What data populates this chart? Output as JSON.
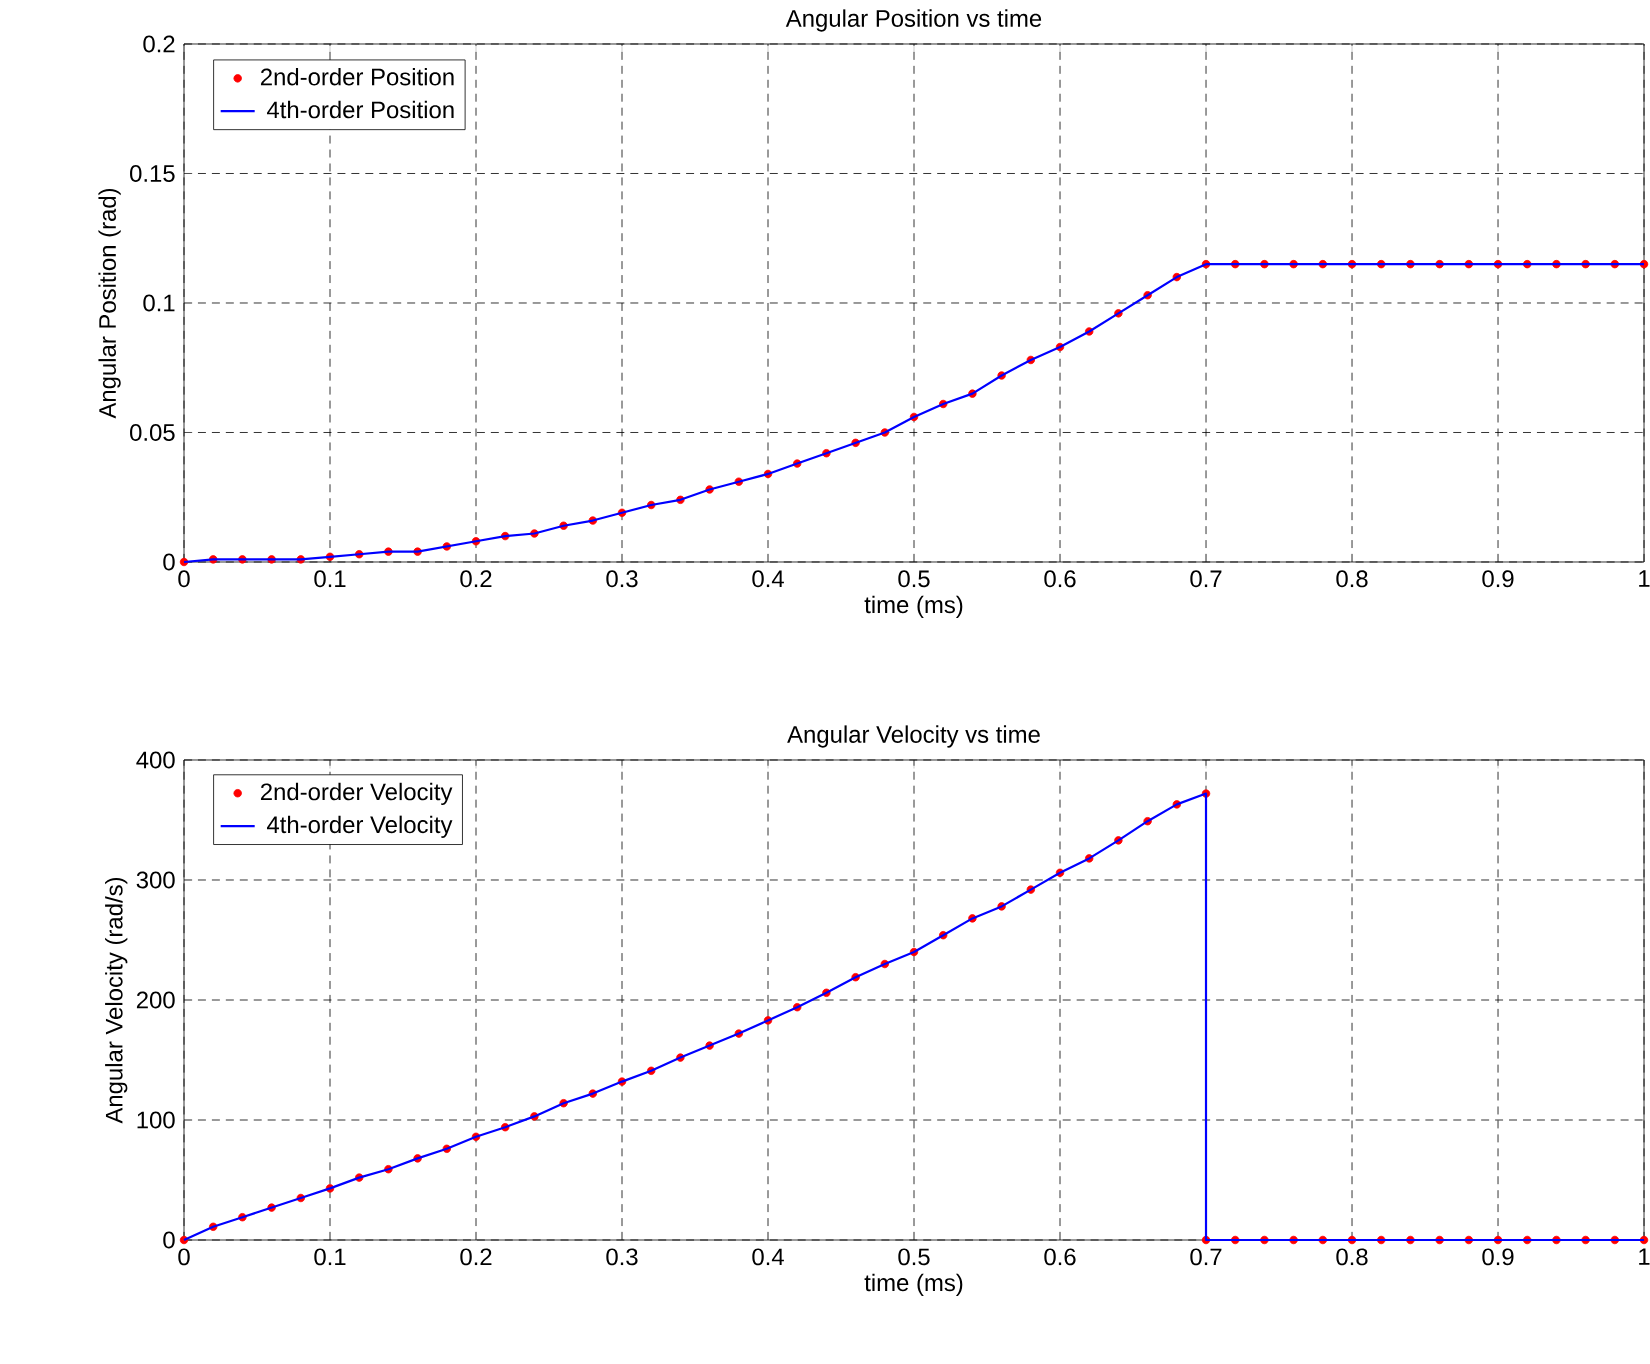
{
  "chart_data": [
    {
      "type": "line",
      "title": "Angular Position vs time",
      "xlabel": "time (ms)",
      "ylabel": "Angular Position (rad)",
      "xlim": [
        0,
        1
      ],
      "xticks": [
        0,
        0.1,
        0.2,
        0.3,
        0.4,
        0.5,
        0.6,
        0.7,
        0.8,
        0.9,
        1
      ],
      "ylim": [
        0,
        0.2
      ],
      "yticks": [
        0,
        0.05,
        0.1,
        0.15,
        0.2
      ],
      "grid": true,
      "legend": "top left",
      "series": [
        {
          "name": "2nd-order Position",
          "type": "scatter",
          "marker": "circle",
          "color": "#ff0000",
          "x": [
            0,
            0.02,
            0.04,
            0.06,
            0.08,
            0.1,
            0.12,
            0.14,
            0.16,
            0.18,
            0.2,
            0.22,
            0.24,
            0.26,
            0.28,
            0.3,
            0.32,
            0.34,
            0.36,
            0.38,
            0.4,
            0.42,
            0.44,
            0.46,
            0.48,
            0.5,
            0.52,
            0.54,
            0.56,
            0.58,
            0.6,
            0.62,
            0.64,
            0.66,
            0.68,
            0.7,
            0.72,
            0.74,
            0.76,
            0.78,
            0.8,
            0.82,
            0.84,
            0.86,
            0.88,
            0.9,
            0.92,
            0.94,
            0.96,
            0.98,
            1
          ],
          "values": [
            0,
            0.001,
            0.001,
            0.001,
            0.001,
            0.002,
            0.003,
            0.004,
            0.004,
            0.006,
            0.008,
            0.01,
            0.011,
            0.014,
            0.016,
            0.019,
            0.022,
            0.024,
            0.028,
            0.031,
            0.034,
            0.038,
            0.042,
            0.046,
            0.05,
            0.056,
            0.061,
            0.065,
            0.072,
            0.078,
            0.083,
            0.089,
            0.096,
            0.103,
            0.11,
            0.115,
            0.115,
            0.115,
            0.115,
            0.115,
            0.115,
            0.115,
            0.115,
            0.115,
            0.115,
            0.115,
            0.115,
            0.115,
            0.115,
            0.115,
            0.115
          ]
        },
        {
          "name": "4th-order Position",
          "type": "line",
          "marker": "none",
          "color": "#0000ff",
          "x": [
            0,
            0.02,
            0.04,
            0.06,
            0.08,
            0.1,
            0.12,
            0.14,
            0.16,
            0.18,
            0.2,
            0.22,
            0.24,
            0.26,
            0.28,
            0.3,
            0.32,
            0.34,
            0.36,
            0.38,
            0.4,
            0.42,
            0.44,
            0.46,
            0.48,
            0.5,
            0.52,
            0.54,
            0.56,
            0.58,
            0.6,
            0.62,
            0.64,
            0.66,
            0.68,
            0.7,
            0.72,
            0.74,
            0.76,
            0.78,
            0.8,
            0.82,
            0.84,
            0.86,
            0.88,
            0.9,
            0.92,
            0.94,
            0.96,
            0.98,
            1
          ],
          "values": [
            0,
            0.001,
            0.001,
            0.001,
            0.001,
            0.002,
            0.003,
            0.004,
            0.004,
            0.006,
            0.008,
            0.01,
            0.011,
            0.014,
            0.016,
            0.019,
            0.022,
            0.024,
            0.028,
            0.031,
            0.034,
            0.038,
            0.042,
            0.046,
            0.05,
            0.056,
            0.061,
            0.065,
            0.072,
            0.078,
            0.083,
            0.089,
            0.096,
            0.103,
            0.11,
            0.115,
            0.115,
            0.115,
            0.115,
            0.115,
            0.115,
            0.115,
            0.115,
            0.115,
            0.115,
            0.115,
            0.115,
            0.115,
            0.115,
            0.115,
            0.115
          ]
        }
      ]
    },
    {
      "type": "line",
      "title": "Angular Velocity vs time",
      "xlabel": "time (ms)",
      "ylabel": "Angular Velocity (rad/s)",
      "xlim": [
        0,
        1
      ],
      "xticks": [
        0,
        0.1,
        0.2,
        0.3,
        0.4,
        0.5,
        0.6,
        0.7,
        0.8,
        0.9,
        1
      ],
      "ylim": [
        0,
        400
      ],
      "yticks": [
        0,
        100,
        200,
        300,
        400
      ],
      "grid": true,
      "legend": "top left",
      "series": [
        {
          "name": "2nd-order Velocity",
          "type": "scatter",
          "marker": "circle",
          "color": "#ff0000",
          "x": [
            0,
            0.02,
            0.04,
            0.06,
            0.08,
            0.1,
            0.12,
            0.14,
            0.16,
            0.18,
            0.2,
            0.22,
            0.24,
            0.26,
            0.28,
            0.3,
            0.32,
            0.34,
            0.36,
            0.38,
            0.4,
            0.42,
            0.44,
            0.46,
            0.48,
            0.5,
            0.52,
            0.54,
            0.56,
            0.58,
            0.6,
            0.62,
            0.64,
            0.66,
            0.68,
            0.7,
            0.7,
            0.72,
            0.74,
            0.76,
            0.78,
            0.8,
            0.82,
            0.84,
            0.86,
            0.88,
            0.9,
            0.92,
            0.94,
            0.96,
            0.98,
            1
          ],
          "values": [
            0,
            11,
            19,
            27,
            35,
            43,
            52,
            59,
            68,
            76,
            86,
            94,
            103,
            114,
            122,
            132,
            141,
            152,
            162,
            172,
            183,
            194,
            206,
            219,
            230,
            240,
            254,
            268,
            278,
            292,
            306,
            318,
            333,
            349,
            363,
            372,
            0,
            0,
            0,
            0,
            0,
            0,
            0,
            0,
            0,
            0,
            0,
            0,
            0,
            0,
            0,
            0
          ]
        },
        {
          "name": "4th-order Velocity",
          "type": "line",
          "marker": "none",
          "color": "#0000ff",
          "x": [
            0,
            0.02,
            0.04,
            0.06,
            0.08,
            0.1,
            0.12,
            0.14,
            0.16,
            0.18,
            0.2,
            0.22,
            0.24,
            0.26,
            0.28,
            0.3,
            0.32,
            0.34,
            0.36,
            0.38,
            0.4,
            0.42,
            0.44,
            0.46,
            0.48,
            0.5,
            0.52,
            0.54,
            0.56,
            0.58,
            0.6,
            0.62,
            0.64,
            0.66,
            0.68,
            0.7,
            0.7,
            0.72,
            0.74,
            0.76,
            0.78,
            0.8,
            0.82,
            0.84,
            0.86,
            0.88,
            0.9,
            0.92,
            0.94,
            0.96,
            0.98,
            1
          ],
          "values": [
            0,
            11,
            19,
            27,
            35,
            43,
            52,
            59,
            68,
            76,
            86,
            94,
            103,
            114,
            122,
            132,
            141,
            152,
            162,
            172,
            183,
            194,
            206,
            219,
            230,
            240,
            254,
            268,
            278,
            292,
            306,
            318,
            333,
            349,
            363,
            372,
            0,
            0,
            0,
            0,
            0,
            0,
            0,
            0,
            0,
            0,
            0,
            0,
            0,
            0,
            0,
            0
          ]
        }
      ]
    }
  ]
}
